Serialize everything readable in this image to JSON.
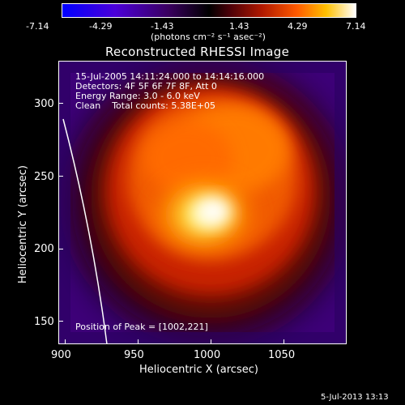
{
  "colorbar": {
    "tick_labels": [
      "-7.14",
      "-4.29",
      "-1.43",
      "1.43",
      "4.29",
      "7.14"
    ],
    "units_label": "(photons cm⁻² s⁻¹ asec⁻²)",
    "gradient_colors": [
      "#0000ff",
      "#6a00c8",
      "#000000",
      "#6a0010",
      "#d82800",
      "#ff8a00",
      "#ffe600",
      "#ffffff"
    ]
  },
  "plot": {
    "title": "Reconstructed RHESSI Image",
    "info_lines": [
      "15-Jul-2005 14:11:24.000 to 14:14:16.000",
      "Detectors: 4F 5F 6F 7F 8F, Att 0",
      "Energy Range: 3.0 - 6.0 keV",
      "Clean    Total counts: 5.38E+05"
    ],
    "peak_label": "Position of Peak = [1002,221]",
    "x_axis": {
      "label": "Heliocentric X (arcsec)",
      "ticks": [
        "900",
        "950",
        "1000",
        "1050"
      ]
    },
    "y_axis": {
      "label": "Heliocentric Y (arcsec)",
      "ticks": [
        "150",
        "200",
        "250",
        "300"
      ]
    },
    "peak_position": [
      1002,
      221
    ]
  },
  "footer": {
    "timestamp": "5-Jul-2013 13:13"
  }
}
